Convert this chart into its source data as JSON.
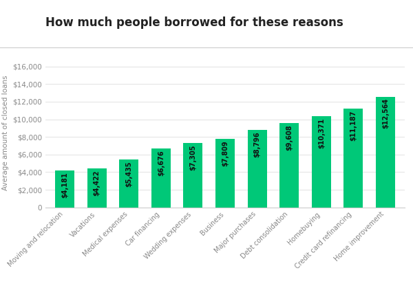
{
  "title": "How much people borrowed for these reasons",
  "categories": [
    "Moving and relocation",
    "Vacations",
    "Medical expenses",
    "Car financing",
    "Wedding expenses",
    "Business",
    "Major purchases",
    "Debt consolidation",
    "Homebuying",
    "Credit card refinancing",
    "Home improvement"
  ],
  "values": [
    4181,
    4422,
    5435,
    6676,
    7305,
    7809,
    8796,
    9608,
    10371,
    11187,
    12564
  ],
  "labels": [
    "$4,181",
    "$4,422",
    "$5,435",
    "$6,676",
    "$7,305",
    "$7,809",
    "$8,796",
    "$9,608",
    "$10,371",
    "$11,187",
    "$12,564"
  ],
  "bar_color": "#00C878",
  "ylabel": "Average amount of closed loans",
  "ylim": [
    0,
    17000
  ],
  "yticks": [
    0,
    2000,
    4000,
    6000,
    8000,
    10000,
    12000,
    14000,
    16000
  ],
  "ytick_labels": [
    "0",
    "$2,000",
    "$4,000",
    "$6,000",
    "$8,000",
    "$10,000",
    "$12,000",
    "$14,000",
    "$16,000"
  ],
  "background_color": "#ffffff",
  "title_fontsize": 12,
  "label_fontsize": 7,
  "ylabel_fontsize": 7.5,
  "xtick_fontsize": 7,
  "ytick_fontsize": 7.5,
  "title_color": "#222222",
  "tick_color": "#888888",
  "label_color": "#111111",
  "grid_color": "#e5e5e5",
  "separator_color": "#cccccc"
}
